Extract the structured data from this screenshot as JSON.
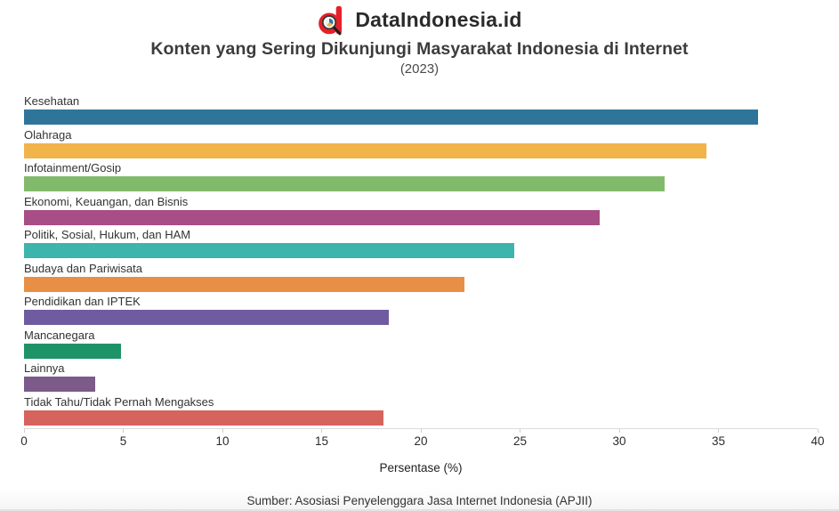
{
  "header": {
    "brand": "DataIndonesia.id",
    "title": "Konten yang Sering Dikunjungi Masyarakat Indonesia di Internet",
    "subtitle": "(2023)"
  },
  "logo": {
    "name": "dataindonesia-logo",
    "red": "#e62129",
    "handle_color": "#1e1e1e"
  },
  "chart_data": {
    "type": "bar",
    "orientation": "horizontal",
    "title": "Konten yang Sering Dikunjungi Masyarakat Indonesia di Internet",
    "subtitle": "(2023)",
    "categories": [
      "Kesehatan",
      "Olahraga",
      "Infotainment/Gosip",
      "Ekonomi, Keuangan, dan Bisnis",
      "Politik, Sosial, Hukum, dan HAM",
      "Budaya dan Pariwisata",
      "Pendidikan dan IPTEK",
      "Mancanegara",
      "Lainnya",
      "Tidak Tahu/Tidak Pernah Mengakses"
    ],
    "values": [
      37.0,
      34.4,
      32.3,
      29.0,
      24.7,
      22.2,
      18.4,
      4.9,
      3.6,
      18.1
    ],
    "bar_colors": [
      "#2e7599",
      "#f0b44a",
      "#82ba6b",
      "#a84d85",
      "#3db4ac",
      "#e88f45",
      "#6f5ba0",
      "#1f9368",
      "#7c5a8a",
      "#d6635d"
    ],
    "xlabel": "Persentase (%)",
    "xlim": [
      0,
      40
    ],
    "xticks": [
      0,
      5,
      10,
      15,
      20,
      25,
      30,
      35,
      40
    ],
    "grid": false,
    "legend": false
  },
  "footer": {
    "source": "Sumber: Asosiasi Penyelenggara Jasa Internet Indonesia (APJII)"
  }
}
